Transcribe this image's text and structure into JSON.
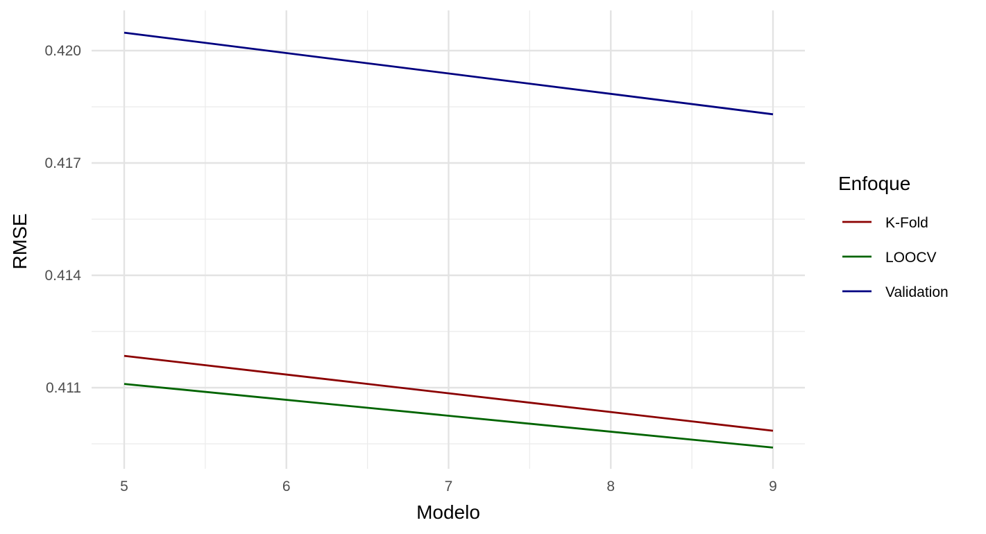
{
  "chart_data": {
    "type": "line",
    "title": "",
    "xlabel": "Modelo",
    "ylabel": "RMSE",
    "x": [
      5,
      9
    ],
    "xlim": [
      5,
      9
    ],
    "ylim": [
      0.4095,
      0.4205
    ],
    "x_ticks": [
      "5",
      "6",
      "7",
      "8",
      "9"
    ],
    "y_ticks": [
      "0.411",
      "0.414",
      "0.417",
      "0.420"
    ],
    "grid": true,
    "legend": {
      "title": "Enfoque",
      "position": "right"
    },
    "series": [
      {
        "name": "K-Fold",
        "color": "#8B0000",
        "values": [
          0.41185,
          0.40985
        ]
      },
      {
        "name": "LOOCV",
        "color": "#006400",
        "values": [
          0.4111,
          0.4094
        ]
      },
      {
        "name": "Validation",
        "color": "#000080",
        "values": [
          0.42048,
          0.4183
        ]
      }
    ]
  }
}
